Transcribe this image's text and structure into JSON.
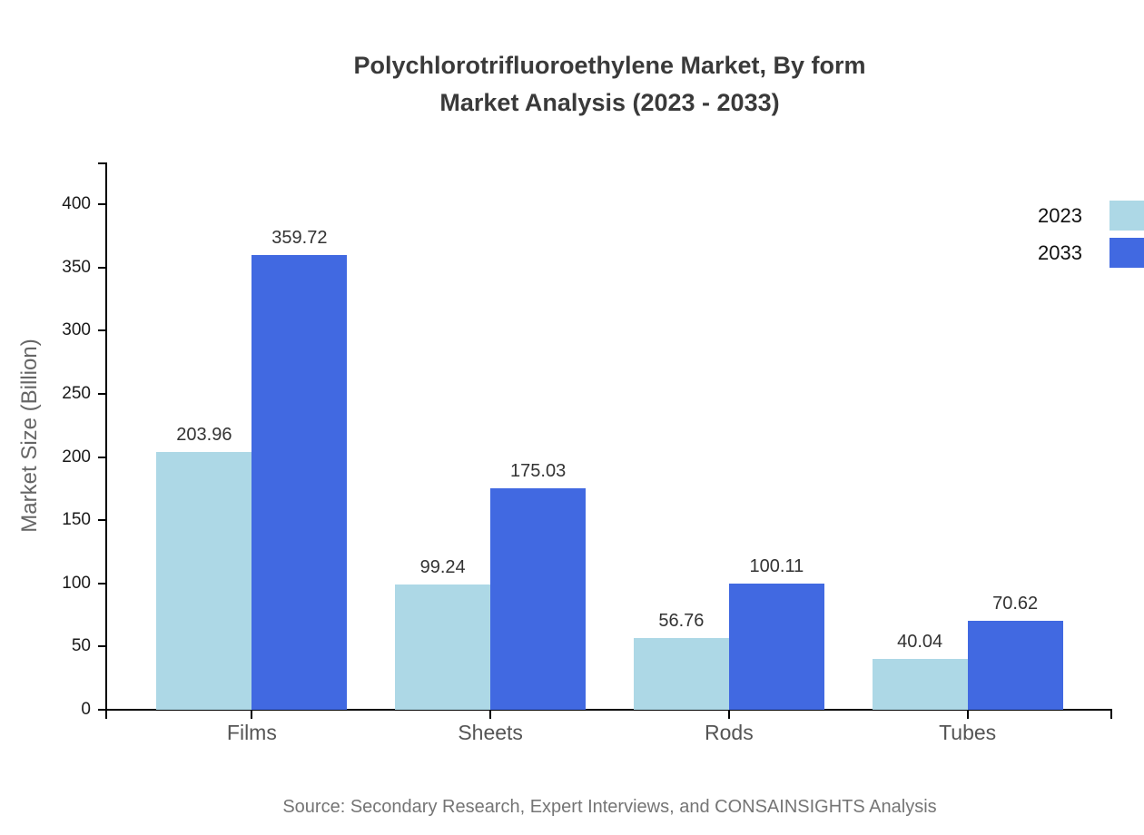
{
  "title": {
    "line1": "Polychlorotrifluoroethylene Market, By form",
    "line2": "Market Analysis (2023 - 2033)"
  },
  "legend": {
    "position": "top-right",
    "items": [
      {
        "label": "2023",
        "color": "#ADD8E6"
      },
      {
        "label": "2033",
        "color": "#4169E1"
      }
    ]
  },
  "source": "Source: Secondary Research, Expert Interviews, and CONSAINSIGHTS Analysis",
  "chart_data": {
    "type": "bar",
    "title": "Polychlorotrifluoroethylene Market, By form Market Analysis (2023 - 2033)",
    "categories": [
      "Films",
      "Sheets",
      "Rods",
      "Tubes"
    ],
    "series": [
      {
        "name": "2023",
        "color": "#ADD8E6",
        "values": [
          203.96,
          99.24,
          56.76,
          40.04
        ]
      },
      {
        "name": "2033",
        "color": "#4169E1",
        "values": [
          359.72,
          175.03,
          100.11,
          70.62
        ]
      }
    ],
    "xlabel": "",
    "ylabel": "Market Size (Billion)",
    "ylim": [
      0,
      432
    ],
    "yticks": [
      0,
      50,
      100,
      150,
      200,
      250,
      300,
      350,
      400
    ],
    "grid": false,
    "value_labels": true,
    "legend_position": "top-right"
  }
}
